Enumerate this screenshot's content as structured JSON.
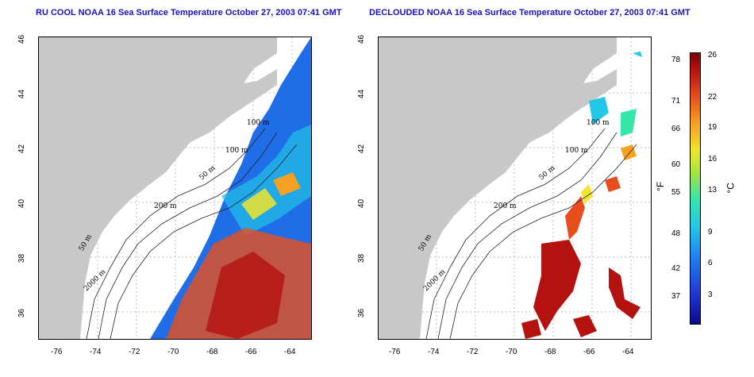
{
  "titles": {
    "left": "RU COOL NOAA 16 Sea Surface Temperature October 27, 2003 07:41 GMT",
    "right": "DECLOUDED NOAA 16 Sea Surface Temperature October 27, 2003 07:41 GMT"
  },
  "axes": {
    "lat_ticks": [
      "46",
      "44",
      "42",
      "40",
      "38",
      "36"
    ],
    "lon_ticks": [
      "-76",
      "-74",
      "-72",
      "-70",
      "-68",
      "-66",
      "-64"
    ]
  },
  "contours": {
    "left": [
      "100 m",
      "100 m",
      "50 m",
      "200 m",
      "50 m",
      "2000 m"
    ],
    "right": [
      "100 m",
      "100 m",
      "50 m",
      "200 m",
      "50 m",
      "2000 m"
    ]
  },
  "colorbar": {
    "fahrenheit": [
      "78",
      "71",
      "66",
      "60",
      "55",
      "48",
      "42",
      "37"
    ],
    "celsius": [
      "26",
      "22",
      "19",
      "16",
      "13",
      "9",
      "6",
      "3"
    ],
    "unit_f": "°F",
    "unit_c": "°C"
  },
  "colors": {
    "land": "#c8c8c8",
    "title": "#1b12b5"
  }
}
